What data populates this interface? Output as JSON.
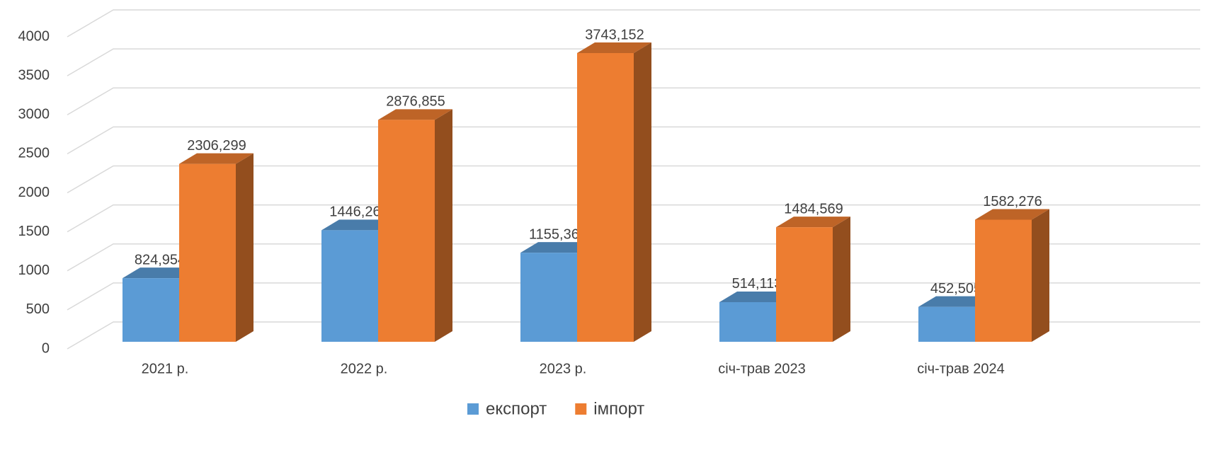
{
  "chart_data": {
    "type": "bar3d",
    "categories": [
      "2021 р.",
      "2022 р.",
      "2023 р.",
      "січ-трав 2023",
      "січ-трав 2024"
    ],
    "series": [
      {
        "name": "експорт",
        "color": "#5b9bd5",
        "values": [
          824.954,
          1446.268,
          1155.366,
          514.113,
          452.505
        ],
        "value_labels": [
          "824,954",
          "1446,268",
          "1155,366",
          "514,113",
          "452,505"
        ]
      },
      {
        "name": "імпорт",
        "color": "#ed7d31",
        "values": [
          2306.299,
          2876.855,
          3743.152,
          1484.569,
          1582.276
        ],
        "value_labels": [
          "2306,299",
          "2876,855",
          "3743,152",
          "1484,569",
          "1582,276"
        ]
      }
    ],
    "ylim": [
      0,
      4000
    ],
    "yticks": [
      0,
      500,
      1000,
      1500,
      2000,
      2500,
      3000,
      3500,
      4000
    ],
    "grid": true,
    "legend": "bottom"
  }
}
